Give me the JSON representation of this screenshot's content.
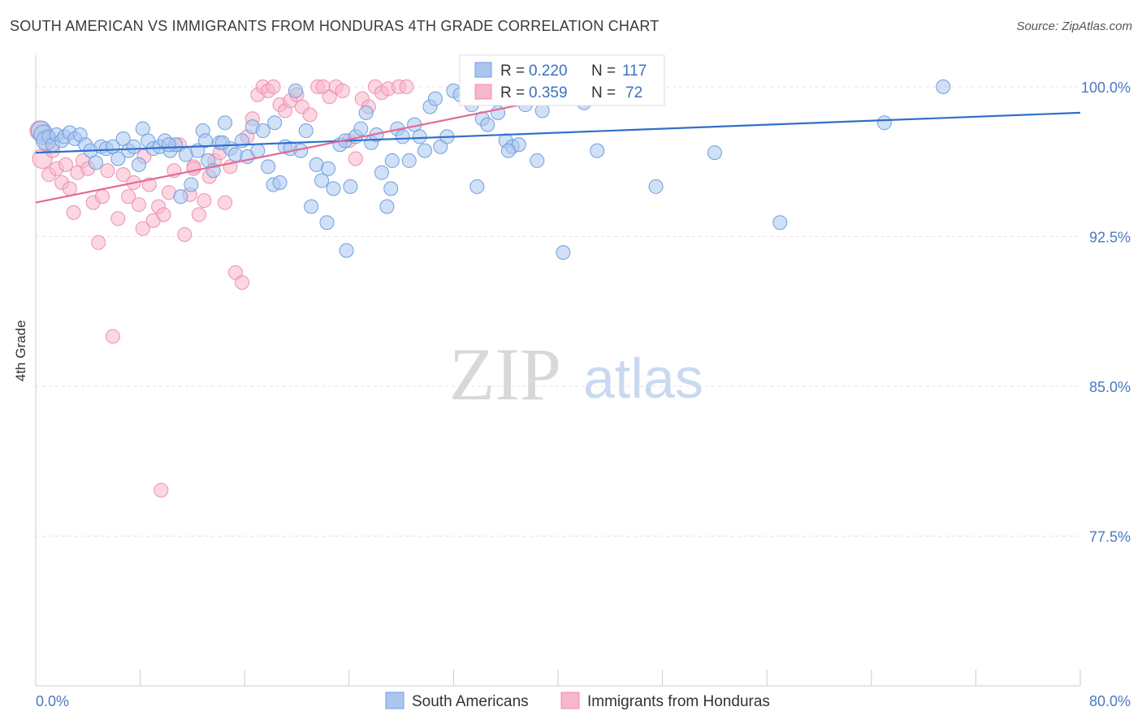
{
  "header": {
    "title": "SOUTH AMERICAN VS IMMIGRANTS FROM HONDURAS 4TH GRADE CORRELATION CHART",
    "source": "Source: ZipAtlas.com"
  },
  "watermark": {
    "zip": "ZIP",
    "atlas": "atlas"
  },
  "colors": {
    "blue_fill": "#a9c6ee",
    "blue_stroke": "#6f9fe0",
    "blue_line": "#2f6fcc",
    "pink_fill": "#f7b7cb",
    "pink_stroke": "#ef8fae",
    "pink_line": "#e56a96",
    "tick_text": "#4a78c2",
    "grid": "#e2e2e2"
  },
  "legend": {
    "rows": [
      {
        "r_label": "R =",
        "r_value": "0.220",
        "n_label": "N =",
        "n_value": "117"
      },
      {
        "r_label": "R =",
        "r_value": "0.359",
        "n_label": "N =",
        "n_value": "72"
      }
    ]
  },
  "chart_data": {
    "type": "scatter",
    "title": "SOUTH AMERICAN VS IMMIGRANTS FROM HONDURAS 4TH GRADE CORRELATION CHART",
    "ylabel": "4th Grade",
    "xlim": [
      0,
      80
    ],
    "ylim": [
      70,
      101.5
    ],
    "y_ticks": [
      {
        "value": 100.0,
        "label": "100.0%"
      },
      {
        "value": 92.5,
        "label": "92.5%"
      },
      {
        "value": 85.0,
        "label": "85.0%"
      },
      {
        "value": 77.5,
        "label": "77.5%"
      }
    ],
    "x_ticks": [
      {
        "value": 0,
        "label": "0.0%"
      },
      {
        "value": 80,
        "label": "80.0%"
      }
    ],
    "x_minor_ticks": [
      0,
      8,
      16,
      24,
      32,
      40,
      48,
      56,
      64,
      72,
      80
    ],
    "grid": true,
    "legend_position": "top-center",
    "series": [
      {
        "name": "South Americans",
        "r": 0.22,
        "n": 117,
        "trend": {
          "x": [
            0,
            80
          ],
          "y": [
            96.7,
            98.7
          ]
        },
        "points": [
          [
            0.4,
            97.8
          ],
          [
            0.6,
            97.6
          ],
          [
            0.8,
            97.3
          ],
          [
            1.0,
            97.5
          ],
          [
            1.3,
            97.1
          ],
          [
            1.6,
            97.6
          ],
          [
            2.0,
            97.3
          ],
          [
            2.2,
            97.5
          ],
          [
            2.6,
            97.7
          ],
          [
            3.0,
            97.4
          ],
          [
            3.4,
            97.6
          ],
          [
            3.8,
            97.1
          ],
          [
            4.2,
            96.8
          ],
          [
            4.6,
            96.2
          ],
          [
            5.0,
            97.0
          ],
          [
            5.4,
            96.9
          ],
          [
            5.9,
            97.0
          ],
          [
            6.3,
            96.4
          ],
          [
            6.7,
            97.4
          ],
          [
            7.1,
            96.8
          ],
          [
            7.5,
            97.0
          ],
          [
            7.9,
            96.1
          ],
          [
            8.2,
            97.9
          ],
          [
            8.6,
            97.3
          ],
          [
            9.0,
            96.9
          ],
          [
            9.5,
            97.0
          ],
          [
            9.9,
            97.3
          ],
          [
            10.3,
            96.8
          ],
          [
            10.7,
            97.1
          ],
          [
            11.1,
            94.5
          ],
          [
            11.5,
            96.6
          ],
          [
            11.9,
            95.1
          ],
          [
            12.4,
            96.8
          ],
          [
            12.8,
            97.8
          ],
          [
            13.2,
            96.3
          ],
          [
            13.6,
            95.8
          ],
          [
            14.1,
            97.2
          ],
          [
            14.5,
            98.2
          ],
          [
            14.9,
            96.9
          ],
          [
            15.3,
            96.6
          ],
          [
            15.8,
            97.3
          ],
          [
            16.2,
            96.5
          ],
          [
            16.6,
            98.0
          ],
          [
            17.0,
            96.8
          ],
          [
            17.4,
            97.8
          ],
          [
            17.8,
            96.0
          ],
          [
            18.2,
            95.1
          ],
          [
            18.7,
            95.2
          ],
          [
            19.1,
            97.0
          ],
          [
            19.5,
            96.9
          ],
          [
            19.9,
            99.8
          ],
          [
            20.3,
            96.8
          ],
          [
            20.7,
            97.8
          ],
          [
            21.1,
            94.0
          ],
          [
            21.5,
            96.1
          ],
          [
            21.9,
            95.3
          ],
          [
            22.4,
            95.9
          ],
          [
            22.8,
            94.9
          ],
          [
            23.3,
            97.1
          ],
          [
            23.7,
            97.3
          ],
          [
            24.1,
            95.0
          ],
          [
            24.5,
            97.5
          ],
          [
            24.9,
            97.9
          ],
          [
            25.3,
            98.7
          ],
          [
            25.7,
            97.2
          ],
          [
            26.1,
            97.6
          ],
          [
            26.5,
            95.7
          ],
          [
            26.9,
            94.0
          ],
          [
            27.3,
            96.3
          ],
          [
            27.7,
            97.9
          ],
          [
            28.1,
            97.5
          ],
          [
            28.6,
            96.3
          ],
          [
            29.0,
            98.1
          ],
          [
            29.4,
            97.5
          ],
          [
            29.8,
            96.8
          ],
          [
            30.2,
            99.0
          ],
          [
            30.6,
            99.4
          ],
          [
            31.0,
            97.0
          ],
          [
            31.5,
            97.5
          ],
          [
            32.0,
            99.8
          ],
          [
            32.5,
            99.6
          ],
          [
            33.0,
            100.0
          ],
          [
            33.4,
            99.1
          ],
          [
            33.8,
            95.0
          ],
          [
            34.2,
            98.4
          ],
          [
            34.6,
            98.1
          ],
          [
            35.0,
            99.4
          ],
          [
            35.4,
            98.7
          ],
          [
            36.0,
            97.3
          ],
          [
            36.5,
            97.0
          ],
          [
            37.0,
            97.1
          ],
          [
            37.5,
            99.1
          ],
          [
            38.0,
            99.8
          ],
          [
            38.4,
            96.3
          ],
          [
            38.8,
            98.8
          ],
          [
            39.2,
            99.5
          ],
          [
            39.7,
            100.0
          ],
          [
            40.2,
            99.8
          ],
          [
            41.0,
            99.5
          ],
          [
            41.5,
            100.0
          ],
          [
            42.0,
            99.2
          ],
          [
            43.0,
            96.8
          ],
          [
            44.0,
            99.6
          ],
          [
            13.0,
            97.3
          ],
          [
            14.3,
            97.2
          ],
          [
            22.3,
            93.2
          ],
          [
            23.8,
            91.8
          ],
          [
            36.2,
            96.8
          ],
          [
            40.4,
            91.7
          ],
          [
            47.5,
            95.0
          ],
          [
            52.0,
            96.7
          ],
          [
            57.0,
            93.2
          ],
          [
            65.0,
            98.2
          ],
          [
            69.5,
            100.0
          ],
          [
            10.2,
            97.1
          ],
          [
            18.3,
            98.2
          ],
          [
            27.2,
            94.9
          ]
        ]
      },
      {
        "name": "Immigrants from Honduras",
        "r": 0.359,
        "n": 72,
        "trend": {
          "x": [
            0,
            44
          ],
          "y": [
            94.2,
            100.0
          ]
        },
        "points": [
          [
            0.3,
            97.8
          ],
          [
            0.5,
            96.4
          ],
          [
            0.8,
            97.1
          ],
          [
            1.0,
            95.6
          ],
          [
            1.3,
            96.8
          ],
          [
            1.6,
            95.9
          ],
          [
            2.0,
            95.2
          ],
          [
            2.3,
            96.1
          ],
          [
            2.6,
            94.9
          ],
          [
            2.9,
            93.7
          ],
          [
            3.2,
            95.7
          ],
          [
            3.6,
            96.3
          ],
          [
            4.0,
            95.9
          ],
          [
            4.4,
            94.2
          ],
          [
            4.8,
            92.2
          ],
          [
            5.1,
            94.5
          ],
          [
            5.5,
            95.8
          ],
          [
            5.9,
            87.5
          ],
          [
            6.3,
            93.4
          ],
          [
            6.7,
            95.6
          ],
          [
            7.1,
            94.5
          ],
          [
            7.5,
            95.2
          ],
          [
            7.9,
            94.1
          ],
          [
            8.3,
            96.5
          ],
          [
            8.7,
            95.1
          ],
          [
            9.0,
            93.3
          ],
          [
            9.4,
            94.0
          ],
          [
            9.8,
            93.6
          ],
          [
            10.2,
            94.7
          ],
          [
            10.6,
            95.8
          ],
          [
            11.0,
            97.1
          ],
          [
            11.4,
            92.6
          ],
          [
            11.8,
            94.6
          ],
          [
            12.1,
            96.0
          ],
          [
            12.5,
            93.6
          ],
          [
            12.9,
            94.3
          ],
          [
            13.3,
            95.5
          ],
          [
            13.7,
            96.3
          ],
          [
            14.1,
            96.7
          ],
          [
            14.5,
            94.2
          ],
          [
            14.9,
            96.0
          ],
          [
            15.3,
            90.7
          ],
          [
            15.8,
            90.2
          ],
          [
            16.2,
            97.5
          ],
          [
            16.6,
            98.4
          ],
          [
            17.0,
            99.6
          ],
          [
            17.4,
            100.0
          ],
          [
            17.8,
            99.8
          ],
          [
            18.2,
            100.0
          ],
          [
            18.7,
            99.1
          ],
          [
            19.1,
            98.8
          ],
          [
            19.5,
            99.3
          ],
          [
            20.0,
            99.6
          ],
          [
            20.4,
            99.0
          ],
          [
            21.0,
            98.6
          ],
          [
            21.6,
            100.0
          ],
          [
            22.0,
            100.0
          ],
          [
            22.5,
            99.5
          ],
          [
            23.0,
            100.0
          ],
          [
            23.5,
            99.8
          ],
          [
            24.0,
            97.3
          ],
          [
            24.5,
            96.4
          ],
          [
            25.0,
            99.4
          ],
          [
            25.5,
            99.0
          ],
          [
            26.0,
            100.0
          ],
          [
            26.5,
            99.7
          ],
          [
            27.0,
            99.9
          ],
          [
            27.8,
            100.0
          ],
          [
            28.4,
            100.0
          ],
          [
            9.6,
            79.8
          ],
          [
            12.1,
            95.9
          ],
          [
            8.2,
            92.9
          ]
        ]
      }
    ]
  },
  "bottom_legend": {
    "items": [
      {
        "label": "South Americans"
      },
      {
        "label": "Immigrants from Honduras"
      }
    ]
  }
}
